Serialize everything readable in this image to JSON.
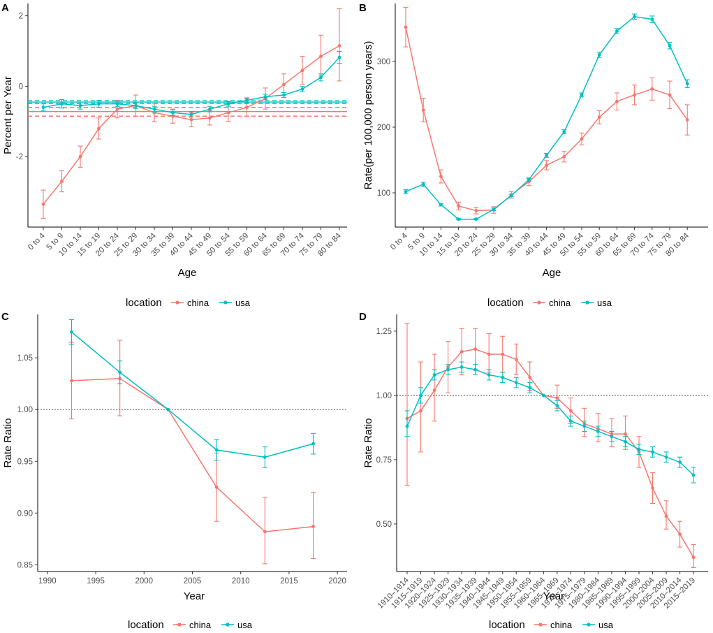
{
  "colors": {
    "china": "#F8766D",
    "usa": "#00BFC4",
    "axis": "#000000",
    "tick_text": "#4D4D4D"
  },
  "chart_data": [
    {
      "panel": "A",
      "type": "line",
      "xlabel": "Age",
      "ylabel": "Percent per Year",
      "categories": [
        "0 to 4",
        "5 to 9",
        "10 to 14",
        "15 to 19",
        "20 to 24",
        "25 to 29",
        "30 to 34",
        "35 to 39",
        "40 to 44",
        "45 to 49",
        "50 to 54",
        "55 to 59",
        "60 to 64",
        "65 to 69",
        "70 to 74",
        "75 to 79",
        "80 to 84"
      ],
      "yticks": [
        -2,
        0,
        2
      ],
      "ylim": [
        -4,
        2.35
      ],
      "series": [
        {
          "name": "china",
          "values": [
            -3.35,
            -2.7,
            -2.0,
            -1.2,
            -0.65,
            -0.55,
            -0.75,
            -0.85,
            -0.95,
            -0.9,
            -0.75,
            -0.6,
            -0.35,
            0.05,
            0.45,
            0.85,
            1.15
          ],
          "lower": [
            -3.75,
            -3.0,
            -2.3,
            -1.5,
            -0.9,
            -0.85,
            -1.0,
            -1.05,
            -1.15,
            -1.1,
            -1.0,
            -0.85,
            -0.65,
            -0.25,
            0.05,
            0.3,
            0.15
          ],
          "upper": [
            -2.95,
            -2.4,
            -1.7,
            -0.9,
            -0.4,
            -0.25,
            -0.5,
            -0.65,
            -0.75,
            -0.7,
            -0.5,
            -0.35,
            -0.05,
            0.35,
            0.85,
            1.45,
            2.2
          ],
          "net_drift": -0.72,
          "net_drift_ci": [
            -0.85,
            -0.6
          ]
        },
        {
          "name": "usa",
          "values": [
            -0.6,
            -0.5,
            -0.55,
            -0.5,
            -0.5,
            -0.55,
            -0.65,
            -0.75,
            -0.8,
            -0.65,
            -0.5,
            -0.4,
            -0.3,
            -0.25,
            -0.08,
            0.25,
            0.82
          ],
          "lower": [
            -0.7,
            -0.62,
            -0.65,
            -0.6,
            -0.58,
            -0.63,
            -0.73,
            -0.83,
            -0.88,
            -0.73,
            -0.57,
            -0.47,
            -0.37,
            -0.32,
            -0.16,
            0.15,
            0.65
          ],
          "upper": [
            -0.5,
            -0.38,
            -0.45,
            -0.4,
            -0.42,
            -0.47,
            -0.57,
            -0.67,
            -0.72,
            -0.57,
            -0.43,
            -0.33,
            -0.23,
            -0.18,
            0.0,
            0.35,
            0.99
          ],
          "net_drift": -0.45,
          "net_drift_ci": [
            -0.49,
            -0.41
          ]
        }
      ]
    },
    {
      "panel": "B",
      "type": "line",
      "xlabel": "Age",
      "ylabel": "Rate(per 100,000 person years)",
      "categories": [
        "0 to 4",
        "5 to 9",
        "10 to 14",
        "15 to 19",
        "20 to 24",
        "25 to 29",
        "30 to 34",
        "35 to 39",
        "40 to 44",
        "45 to 49",
        "50 to 54",
        "55 to 59",
        "60 to 64",
        "65 to 69",
        "70 to 74",
        "75 to 79",
        "80 to 84"
      ],
      "yticks": [
        100,
        200,
        300
      ],
      "ylim": [
        48,
        388
      ],
      "series": [
        {
          "name": "china",
          "values": [
            352,
            226,
            125,
            80,
            73,
            74,
            97,
            117,
            142,
            155,
            182,
            215,
            239,
            249,
            258,
            249,
            211
          ],
          "lower": [
            322,
            208,
            115,
            74,
            68,
            69,
            92,
            111,
            135,
            147,
            173,
            205,
            226,
            234,
            241,
            228,
            188
          ],
          "upper": [
            382,
            244,
            135,
            86,
            78,
            79,
            102,
            123,
            149,
            163,
            191,
            225,
            252,
            264,
            275,
            270,
            234
          ]
        },
        {
          "name": "usa",
          "values": [
            102,
            113,
            82,
            60,
            60,
            75,
            96,
            120,
            157,
            193,
            249,
            310,
            346,
            368,
            364,
            324,
            266
          ],
          "lower": [
            99,
            110,
            80,
            59,
            59,
            73,
            94,
            118,
            154,
            190,
            246,
            306,
            342,
            364,
            359,
            319,
            260
          ],
          "upper": [
            105,
            116,
            84,
            61,
            61,
            77,
            98,
            122,
            160,
            196,
            252,
            314,
            350,
            372,
            369,
            329,
            272
          ]
        }
      ]
    },
    {
      "panel": "C",
      "type": "line",
      "xlabel": "Year",
      "ylabel": "Rate Ratio",
      "xticks": [
        1990,
        1995,
        2000,
        2005,
        2010,
        2015,
        2020
      ],
      "xlim": [
        1989,
        2021
      ],
      "yticks": [
        0.85,
        0.9,
        0.95,
        1.0,
        1.05
      ],
      "ylim": [
        0.8435,
        1.092
      ],
      "reference_line": 1.0,
      "series": [
        {
          "name": "china",
          "x": [
            1992.5,
            1997.5,
            2002.5,
            2007.5,
            2012.5,
            2017.5
          ],
          "values": [
            1.028,
            1.03,
            1.0,
            0.925,
            0.882,
            0.887
          ],
          "lower": [
            0.991,
            0.994,
            1.0,
            0.892,
            0.851,
            0.856
          ],
          "upper": [
            1.065,
            1.067,
            1.0,
            0.958,
            0.915,
            0.92
          ]
        },
        {
          "name": "usa",
          "x": [
            1992.5,
            1997.5,
            2002.5,
            2007.5,
            2012.5,
            2017.5
          ],
          "values": [
            1.075,
            1.036,
            1.0,
            0.961,
            0.954,
            0.967
          ],
          "lower": [
            1.063,
            1.025,
            1.0,
            0.951,
            0.944,
            0.957
          ],
          "upper": [
            1.087,
            1.047,
            1.0,
            0.971,
            0.964,
            0.977
          ]
        }
      ]
    },
    {
      "panel": "D",
      "type": "line",
      "xlabel": "Year",
      "ylabel": "Rate Ratio",
      "categories": [
        "1910–1914",
        "1915–1919",
        "1920–1924",
        "1925–1929",
        "1930–1934",
        "1935–1939",
        "1940–1944",
        "1945–1949",
        "1950–1954",
        "1955–1959",
        "1960–1964",
        "1965–1969",
        "1970–1974",
        "1975–1979",
        "1980–1984",
        "1985–1989",
        "1990–1994",
        "1995–1999",
        "2000–2004",
        "2005–2009",
        "2010–2014",
        "2015–2019"
      ],
      "yticks": [
        0.5,
        0.75,
        1.0,
        1.25
      ],
      "ylim": [
        0.315,
        1.315
      ],
      "reference_line": 1.0,
      "series": [
        {
          "name": "china",
          "values": [
            0.91,
            0.94,
            1.02,
            1.11,
            1.17,
            1.18,
            1.16,
            1.16,
            1.14,
            1.07,
            1.0,
            0.99,
            0.94,
            0.89,
            0.87,
            0.85,
            0.85,
            0.78,
            0.64,
            0.53,
            0.46,
            0.37
          ],
          "lower": [
            0.65,
            0.78,
            0.9,
            1.01,
            1.08,
            1.1,
            1.09,
            1.09,
            1.08,
            1.02,
            1.0,
            0.95,
            0.89,
            0.84,
            0.82,
            0.8,
            0.79,
            0.72,
            0.58,
            0.48,
            0.41,
            0.33
          ],
          "upper": [
            1.28,
            1.13,
            1.16,
            1.21,
            1.26,
            1.26,
            1.24,
            1.23,
            1.2,
            1.13,
            1.0,
            1.04,
            0.99,
            0.95,
            0.93,
            0.91,
            0.92,
            0.84,
            0.7,
            0.59,
            0.51,
            0.42
          ]
        },
        {
          "name": "usa",
          "values": [
            0.88,
            1.0,
            1.08,
            1.1,
            1.11,
            1.1,
            1.08,
            1.07,
            1.05,
            1.03,
            1.0,
            0.96,
            0.9,
            0.88,
            0.86,
            0.84,
            0.82,
            0.79,
            0.78,
            0.76,
            0.74,
            0.69
          ],
          "lower": [
            0.84,
            0.97,
            1.06,
            1.08,
            1.09,
            1.08,
            1.06,
            1.05,
            1.03,
            1.01,
            1.0,
            0.94,
            0.88,
            0.86,
            0.84,
            0.82,
            0.8,
            0.77,
            0.76,
            0.74,
            0.72,
            0.66
          ],
          "upper": [
            0.94,
            1.03,
            1.1,
            1.12,
            1.13,
            1.12,
            1.1,
            1.09,
            1.07,
            1.05,
            1.0,
            0.98,
            0.92,
            0.9,
            0.88,
            0.86,
            0.84,
            0.81,
            0.8,
            0.78,
            0.76,
            0.72
          ]
        }
      ]
    }
  ],
  "legend": {
    "title": "location",
    "entries": [
      "china",
      "usa"
    ]
  }
}
